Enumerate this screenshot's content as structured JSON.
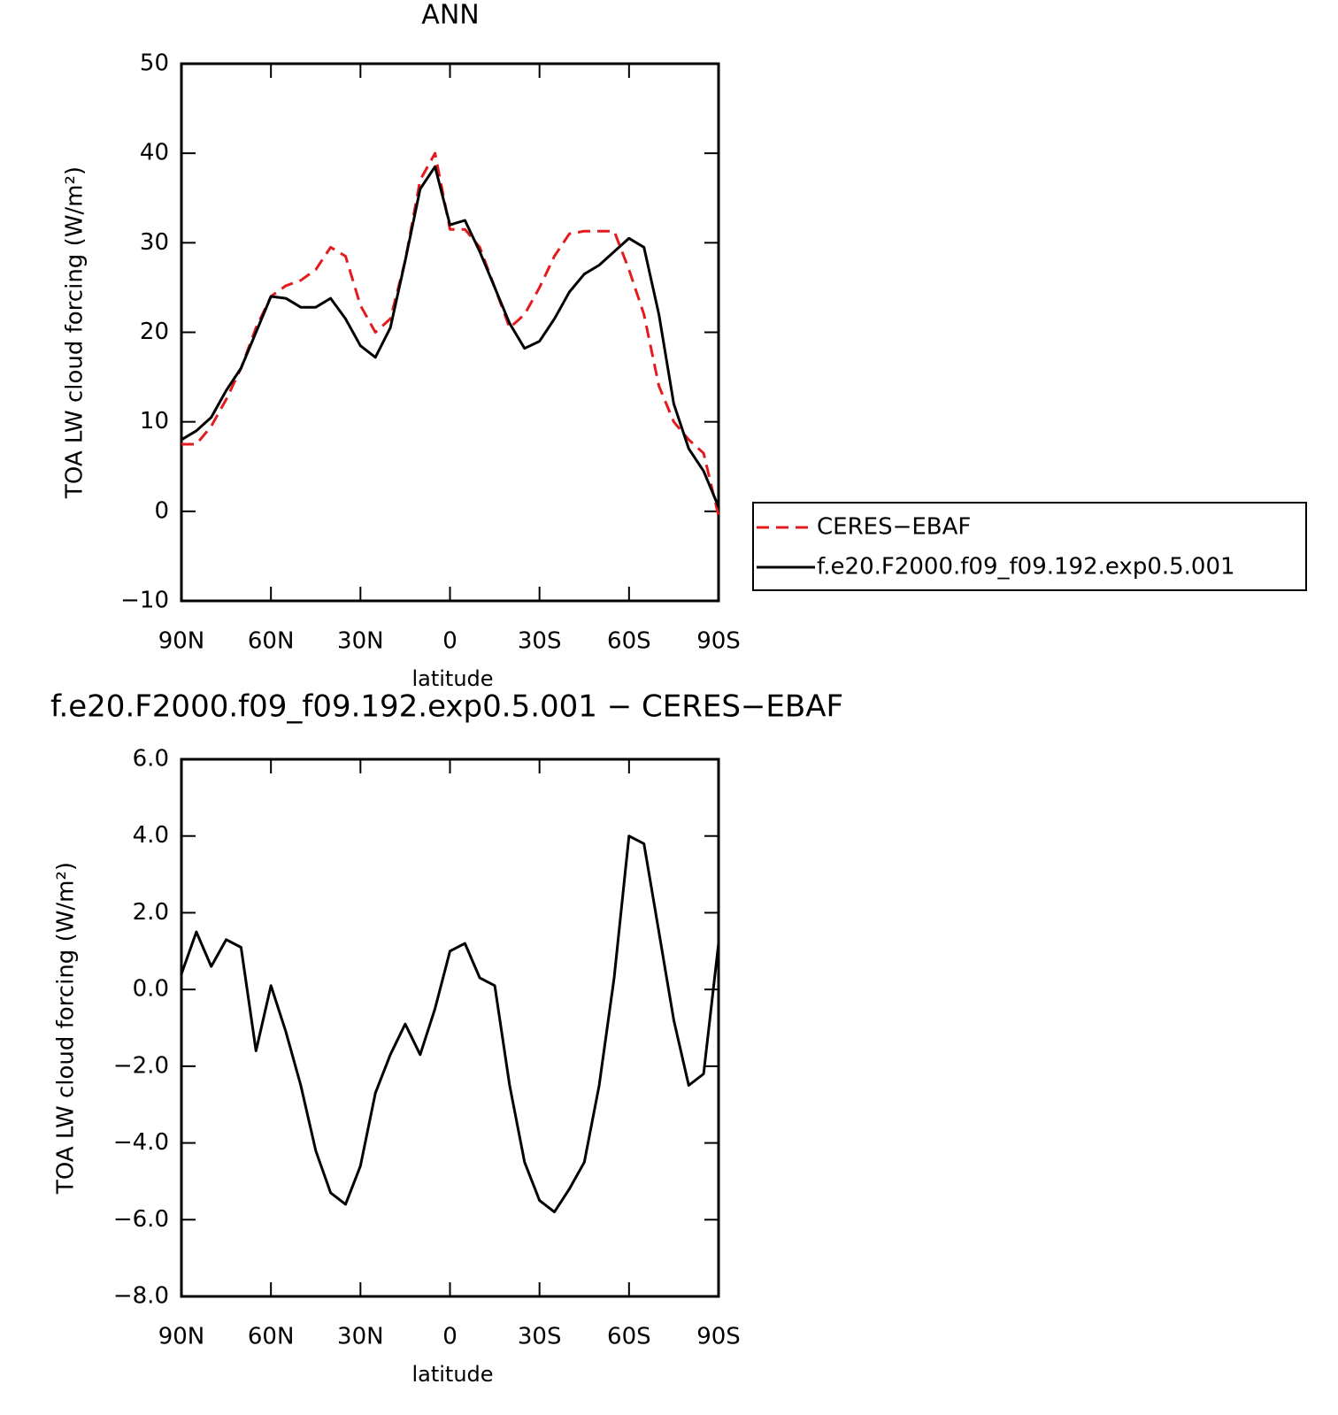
{
  "chart_data": [
    {
      "type": "line",
      "title": "ANN",
      "x_label": "latitude",
      "y_label": "TOA LW cloud forcing (W/m²)",
      "x": [
        90,
        85,
        80,
        75,
        70,
        65,
        60,
        55,
        50,
        45,
        40,
        35,
        30,
        25,
        20,
        15,
        10,
        5,
        0,
        -5,
        -10,
        -15,
        -20,
        -25,
        -30,
        -35,
        -40,
        -45,
        -50,
        -55,
        -60,
        -65,
        -70,
        -75,
        -80,
        -85,
        -90
      ],
      "xlim": [
        90,
        -90
      ],
      "xticks": [
        {
          "value": 90,
          "label": "90N"
        },
        {
          "value": 60,
          "label": "60N"
        },
        {
          "value": 30,
          "label": "30N"
        },
        0,
        {
          "value": -30,
          "label": "30S"
        },
        {
          "value": -60,
          "label": "60S"
        },
        {
          "value": -90,
          "label": "90S"
        }
      ],
      "ylim": [
        -10,
        50
      ],
      "yticks": [
        {
          "value": -10,
          "label": "−10"
        },
        0,
        10,
        20,
        30,
        40,
        50
      ],
      "legend": "right",
      "series": [
        {
          "name": "CERES−EBAF",
          "color": "#e41a1c",
          "line_style": "dashed",
          "values": [
            7.5,
            7.5,
            9.5,
            12.5,
            16,
            20.5,
            24,
            25.2,
            25.8,
            27,
            29.5,
            28.5,
            23,
            20,
            21.5,
            28,
            37,
            40,
            31.5,
            31.5,
            29.5,
            25,
            20.5,
            22,
            25,
            28.5,
            31,
            31.3,
            31.3,
            31.3,
            27,
            22,
            14,
            10,
            8,
            6.5,
            -0.5
          ]
        },
        {
          "name": "f.e20.F2000.f09_f09.192.exp0.5.001",
          "color": "#000000",
          "line_style": "solid",
          "values": [
            8,
            9,
            10.5,
            13.5,
            16,
            20,
            24,
            23.8,
            22.8,
            22.8,
            23.8,
            21.5,
            18.5,
            17.2,
            20.5,
            28,
            36,
            38.5,
            32,
            32.5,
            29,
            25,
            21,
            18.2,
            19,
            21.5,
            24.5,
            26.5,
            27.5,
            29,
            30.5,
            29.5,
            22,
            12,
            7,
            4.5,
            0.5
          ]
        }
      ]
    },
    {
      "type": "line",
      "title": "f.e20.F2000.f09_f09.192.exp0.5.001 − CERES−EBAF",
      "x_label": "latitude",
      "y_label": "TOA LW cloud forcing (W/m²)",
      "x": [
        90,
        85,
        80,
        75,
        70,
        65,
        60,
        55,
        50,
        45,
        40,
        35,
        30,
        25,
        20,
        15,
        10,
        5,
        0,
        -5,
        -10,
        -15,
        -20,
        -25,
        -30,
        -35,
        -40,
        -45,
        -50,
        -55,
        -60,
        -65,
        -70,
        -75,
        -80,
        -85,
        -90
      ],
      "xlim": [
        90,
        -90
      ],
      "xticks": [
        {
          "value": 90,
          "label": "90N"
        },
        {
          "value": 60,
          "label": "60N"
        },
        {
          "value": 30,
          "label": "30N"
        },
        0,
        {
          "value": -30,
          "label": "30S"
        },
        {
          "value": -60,
          "label": "60S"
        },
        {
          "value": -90,
          "label": "90S"
        }
      ],
      "ylim": [
        -8,
        6
      ],
      "yticks": [
        {
          "value": -8,
          "label": "−8.0"
        },
        {
          "value": -6,
          "label": "−6.0"
        },
        {
          "value": -4,
          "label": "−4.0"
        },
        {
          "value": -2,
          "label": "−2.0"
        },
        {
          "value": 0,
          "label": "0.0"
        },
        {
          "value": 2,
          "label": "2.0"
        },
        {
          "value": 4,
          "label": "4.0"
        },
        {
          "value": 6,
          "label": "6.0"
        }
      ],
      "series": [
        {
          "color": "#000000",
          "line_style": "solid",
          "values": [
            0.4,
            1.5,
            0.6,
            1.3,
            1.1,
            -1.6,
            0.1,
            -1.1,
            -2.5,
            -4.2,
            -5.3,
            -5.6,
            -4.6,
            -2.7,
            -1.7,
            -0.9,
            -1.7,
            -0.5,
            1.0,
            1.2,
            0.3,
            0.1,
            -2.5,
            -4.5,
            -5.5,
            -5.8,
            -5.2,
            -4.5,
            -2.5,
            0.3,
            4.0,
            3.8,
            1.5,
            -0.8,
            -2.5,
            -2.2,
            1.2
          ]
        }
      ]
    }
  ]
}
